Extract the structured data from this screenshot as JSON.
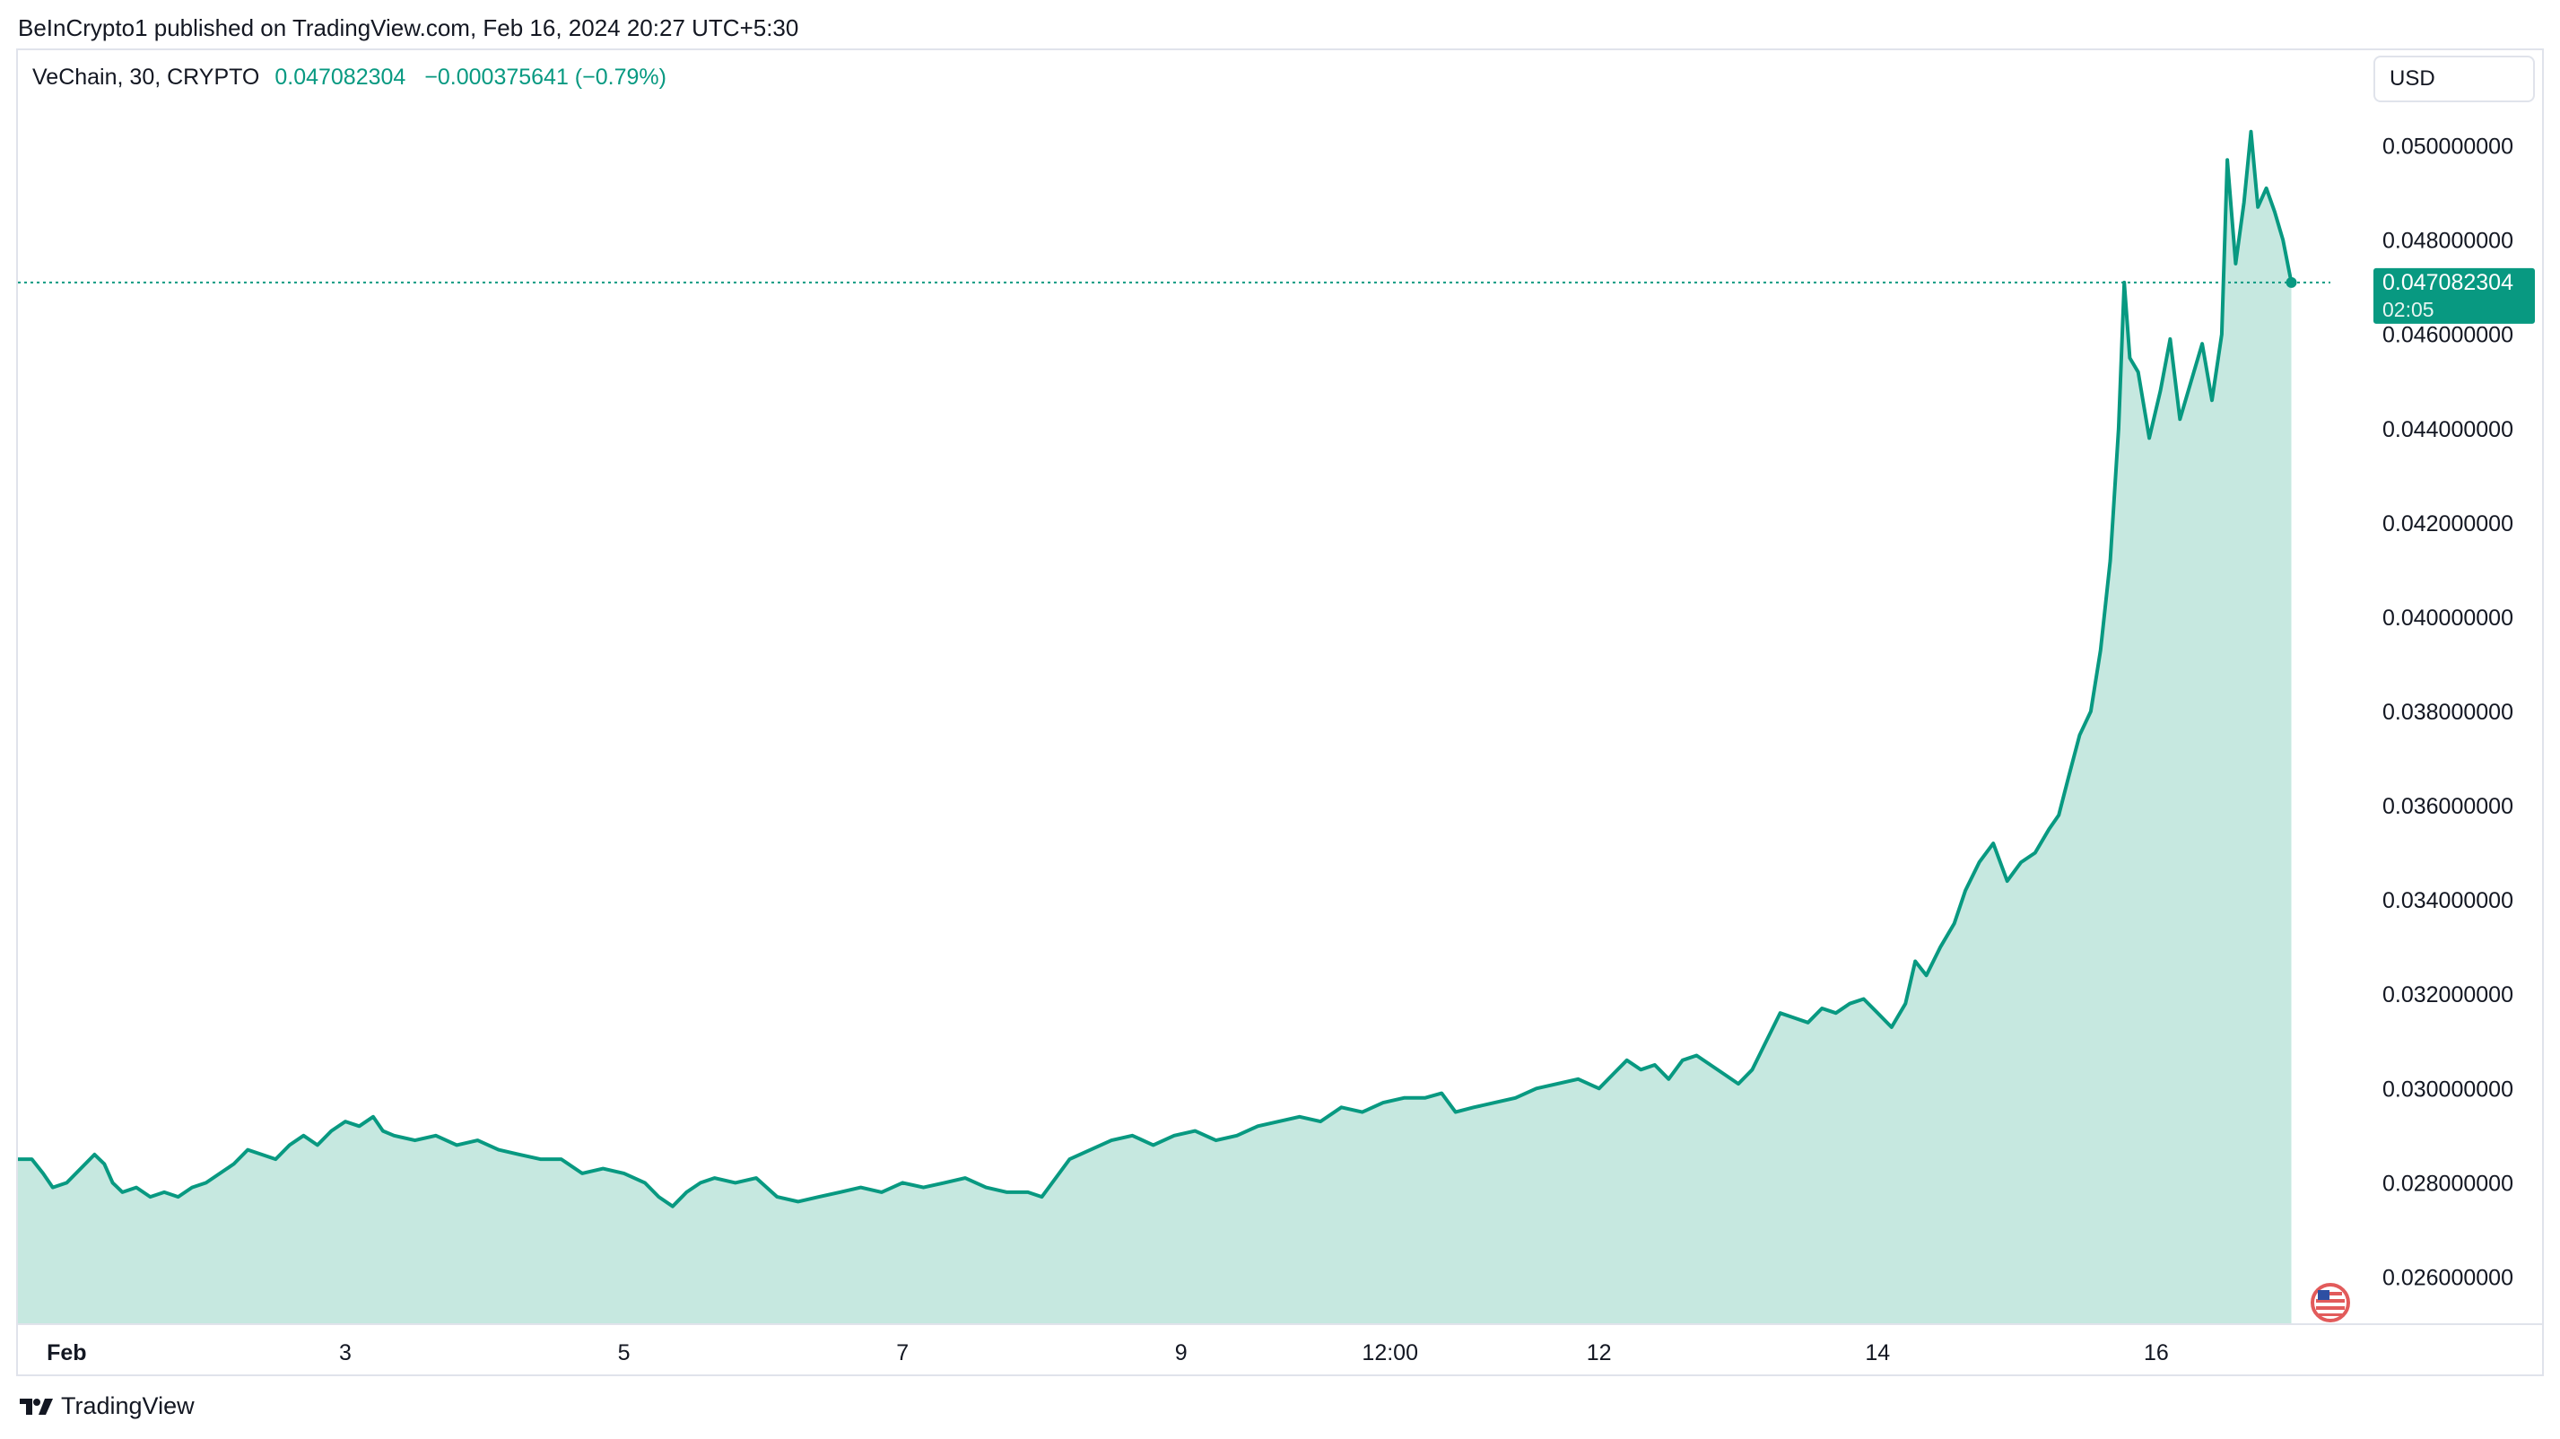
{
  "header": {
    "publisher_line": "BeInCrypto1 published on TradingView.com, Feb 16, 2024 20:27 UTC+5:30"
  },
  "legend": {
    "symbol": "VeChain, 30, CRYPTO",
    "price": "0.047082304",
    "change": "−0.000375641 (−0.79%)"
  },
  "currency_button": "USD",
  "footer": {
    "brand": "TradingView"
  },
  "colors": {
    "line": "#089981",
    "area": "#c6e8e0",
    "grid_border": "#e0e3eb",
    "text": "#131722"
  },
  "chart_data": {
    "type": "area",
    "ylim": [
      0.025,
      0.051
    ],
    "y_ticks": [
      "0.050000000",
      "0.048000000",
      "0.046000000",
      "0.044000000",
      "0.042000000",
      "0.040000000",
      "0.038000000",
      "0.036000000",
      "0.034000000",
      "0.032000000",
      "0.030000000",
      "0.028000000",
      "0.026000000"
    ],
    "y_tick_values": [
      0.05,
      0.048,
      0.046,
      0.044,
      0.042,
      0.04,
      0.038,
      0.036,
      0.034,
      0.032,
      0.03,
      0.028,
      0.026
    ],
    "x_range": [
      0,
      16.6
    ],
    "x_ticks": [
      {
        "label": "Feb",
        "x": 0.35
      },
      {
        "label": "3",
        "x": 2.35
      },
      {
        "label": "5",
        "x": 4.35
      },
      {
        "label": "7",
        "x": 6.35
      },
      {
        "label": "9",
        "x": 8.35
      },
      {
        "label": "12:00",
        "x": 9.85
      },
      {
        "label": "12",
        "x": 11.35
      },
      {
        "label": "14",
        "x": 13.35
      },
      {
        "label": "16",
        "x": 15.35
      }
    ],
    "last_value_label": {
      "value": "0.047082304",
      "countdown": "02:05"
    },
    "series": [
      {
        "points": [
          [
            0.0,
            0.0285
          ],
          [
            0.1,
            0.0285
          ],
          [
            0.18,
            0.0282
          ],
          [
            0.25,
            0.0279
          ],
          [
            0.35,
            0.028
          ],
          [
            0.45,
            0.0283
          ],
          [
            0.55,
            0.0286
          ],
          [
            0.62,
            0.0284
          ],
          [
            0.68,
            0.028
          ],
          [
            0.75,
            0.0278
          ],
          [
            0.85,
            0.0279
          ],
          [
            0.95,
            0.0277
          ],
          [
            1.05,
            0.0278
          ],
          [
            1.15,
            0.0277
          ],
          [
            1.25,
            0.0279
          ],
          [
            1.35,
            0.028
          ],
          [
            1.45,
            0.0282
          ],
          [
            1.55,
            0.0284
          ],
          [
            1.65,
            0.0287
          ],
          [
            1.75,
            0.0286
          ],
          [
            1.85,
            0.0285
          ],
          [
            1.95,
            0.0288
          ],
          [
            2.05,
            0.029
          ],
          [
            2.15,
            0.0288
          ],
          [
            2.25,
            0.0291
          ],
          [
            2.35,
            0.0293
          ],
          [
            2.45,
            0.0292
          ],
          [
            2.55,
            0.0294
          ],
          [
            2.62,
            0.0291
          ],
          [
            2.7,
            0.029
          ],
          [
            2.85,
            0.0289
          ],
          [
            3.0,
            0.029
          ],
          [
            3.15,
            0.0288
          ],
          [
            3.3,
            0.0289
          ],
          [
            3.45,
            0.0287
          ],
          [
            3.6,
            0.0286
          ],
          [
            3.75,
            0.0285
          ],
          [
            3.9,
            0.0285
          ],
          [
            4.05,
            0.0282
          ],
          [
            4.2,
            0.0283
          ],
          [
            4.35,
            0.0282
          ],
          [
            4.5,
            0.028
          ],
          [
            4.6,
            0.0277
          ],
          [
            4.7,
            0.0275
          ],
          [
            4.8,
            0.0278
          ],
          [
            4.9,
            0.028
          ],
          [
            5.0,
            0.0281
          ],
          [
            5.15,
            0.028
          ],
          [
            5.3,
            0.0281
          ],
          [
            5.45,
            0.0277
          ],
          [
            5.6,
            0.0276
          ],
          [
            5.75,
            0.0277
          ],
          [
            5.9,
            0.0278
          ],
          [
            6.05,
            0.0279
          ],
          [
            6.2,
            0.0278
          ],
          [
            6.35,
            0.028
          ],
          [
            6.5,
            0.0279
          ],
          [
            6.65,
            0.028
          ],
          [
            6.8,
            0.0281
          ],
          [
            6.95,
            0.0279
          ],
          [
            7.1,
            0.0278
          ],
          [
            7.25,
            0.0278
          ],
          [
            7.35,
            0.0277
          ],
          [
            7.45,
            0.0281
          ],
          [
            7.55,
            0.0285
          ],
          [
            7.7,
            0.0287
          ],
          [
            7.85,
            0.0289
          ],
          [
            8.0,
            0.029
          ],
          [
            8.15,
            0.0288
          ],
          [
            8.3,
            0.029
          ],
          [
            8.45,
            0.0291
          ],
          [
            8.6,
            0.0289
          ],
          [
            8.75,
            0.029
          ],
          [
            8.9,
            0.0292
          ],
          [
            9.05,
            0.0293
          ],
          [
            9.2,
            0.0294
          ],
          [
            9.35,
            0.0293
          ],
          [
            9.5,
            0.0296
          ],
          [
            9.65,
            0.0295
          ],
          [
            9.8,
            0.0297
          ],
          [
            9.95,
            0.0298
          ],
          [
            10.1,
            0.0298
          ],
          [
            10.22,
            0.0299
          ],
          [
            10.32,
            0.0295
          ],
          [
            10.45,
            0.0296
          ],
          [
            10.6,
            0.0297
          ],
          [
            10.75,
            0.0298
          ],
          [
            10.9,
            0.03
          ],
          [
            11.05,
            0.0301
          ],
          [
            11.2,
            0.0302
          ],
          [
            11.35,
            0.03
          ],
          [
            11.45,
            0.0303
          ],
          [
            11.55,
            0.0306
          ],
          [
            11.65,
            0.0304
          ],
          [
            11.75,
            0.0305
          ],
          [
            11.85,
            0.0302
          ],
          [
            11.95,
            0.0306
          ],
          [
            12.05,
            0.0307
          ],
          [
            12.15,
            0.0305
          ],
          [
            12.25,
            0.0303
          ],
          [
            12.35,
            0.0301
          ],
          [
            12.45,
            0.0304
          ],
          [
            12.55,
            0.031
          ],
          [
            12.65,
            0.0316
          ],
          [
            12.75,
            0.0315
          ],
          [
            12.85,
            0.0314
          ],
          [
            12.95,
            0.0317
          ],
          [
            13.05,
            0.0316
          ],
          [
            13.15,
            0.0318
          ],
          [
            13.25,
            0.0319
          ],
          [
            13.35,
            0.0316
          ],
          [
            13.45,
            0.0313
          ],
          [
            13.55,
            0.0318
          ],
          [
            13.62,
            0.0327
          ],
          [
            13.7,
            0.0324
          ],
          [
            13.8,
            0.033
          ],
          [
            13.9,
            0.0335
          ],
          [
            13.98,
            0.0342
          ],
          [
            14.08,
            0.0348
          ],
          [
            14.18,
            0.0352
          ],
          [
            14.28,
            0.0344
          ],
          [
            14.38,
            0.0348
          ],
          [
            14.48,
            0.035
          ],
          [
            14.58,
            0.0355
          ],
          [
            14.65,
            0.0358
          ],
          [
            14.72,
            0.0366
          ],
          [
            14.8,
            0.0375
          ],
          [
            14.88,
            0.038
          ],
          [
            14.95,
            0.0393
          ],
          [
            15.02,
            0.0412
          ],
          [
            15.08,
            0.044
          ],
          [
            15.12,
            0.0471
          ],
          [
            15.16,
            0.0455
          ],
          [
            15.22,
            0.0452
          ],
          [
            15.3,
            0.0438
          ],
          [
            15.38,
            0.0448
          ],
          [
            15.45,
            0.0459
          ],
          [
            15.52,
            0.0442
          ],
          [
            15.6,
            0.045
          ],
          [
            15.68,
            0.0458
          ],
          [
            15.75,
            0.0446
          ],
          [
            15.82,
            0.046
          ],
          [
            15.86,
            0.0497
          ],
          [
            15.92,
            0.0475
          ],
          [
            15.98,
            0.0488
          ],
          [
            16.03,
            0.0503
          ],
          [
            16.08,
            0.0487
          ],
          [
            16.14,
            0.0491
          ],
          [
            16.2,
            0.0486
          ],
          [
            16.26,
            0.048
          ],
          [
            16.32,
            0.0471
          ]
        ]
      }
    ]
  }
}
